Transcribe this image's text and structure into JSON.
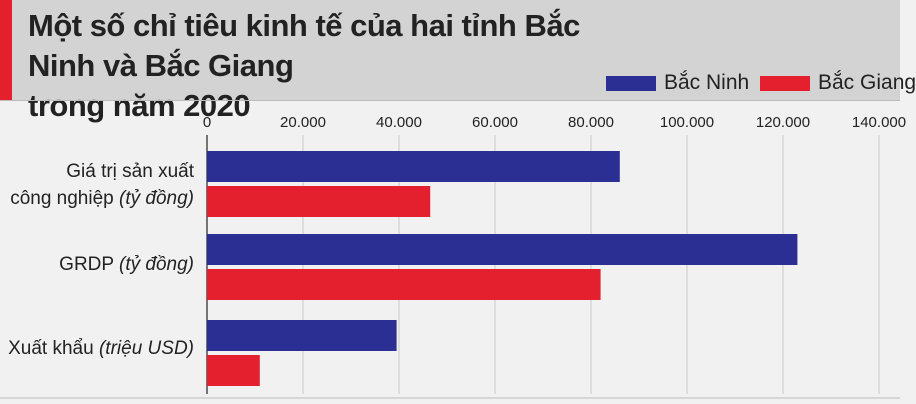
{
  "chart_data": {
    "type": "bar",
    "orientation": "horizontal",
    "title": "Một số chỉ tiêu kinh tế của hai tỉnh Bắc Ninh và Bắc Giang trong năm 2020",
    "title_lines": [
      "Một số chỉ tiêu kinh tế của hai tỉnh Bắc Ninh và Bắc Giang",
      "trong năm 2020"
    ],
    "categories": [
      {
        "main": "Giá trị sản xuất",
        "sub_main": "công nghiệp",
        "unit": "(tỷ đồng)"
      },
      {
        "main": "GRDP",
        "sub_main": "",
        "unit": "(tỷ đồng)"
      },
      {
        "main": "Xuất khẩu",
        "sub_main": "",
        "unit": "(triệu USD)"
      }
    ],
    "series": [
      {
        "name": "Bắc Ninh",
        "color": "#2b2f93",
        "values": [
          86000,
          123000,
          39500
        ]
      },
      {
        "name": "Bắc Giang",
        "color": "#e5202e",
        "values": [
          46500,
          82000,
          11000
        ]
      }
    ],
    "xlim": [
      0,
      140000
    ],
    "ticks": [
      0,
      20000,
      40000,
      60000,
      80000,
      100000,
      120000,
      140000
    ],
    "tick_labels": [
      "0",
      "20.000",
      "40.000",
      "60.000",
      "80.000",
      "100.000",
      "120.000",
      "140.000"
    ],
    "grid": true,
    "legend_position": "top-right"
  }
}
